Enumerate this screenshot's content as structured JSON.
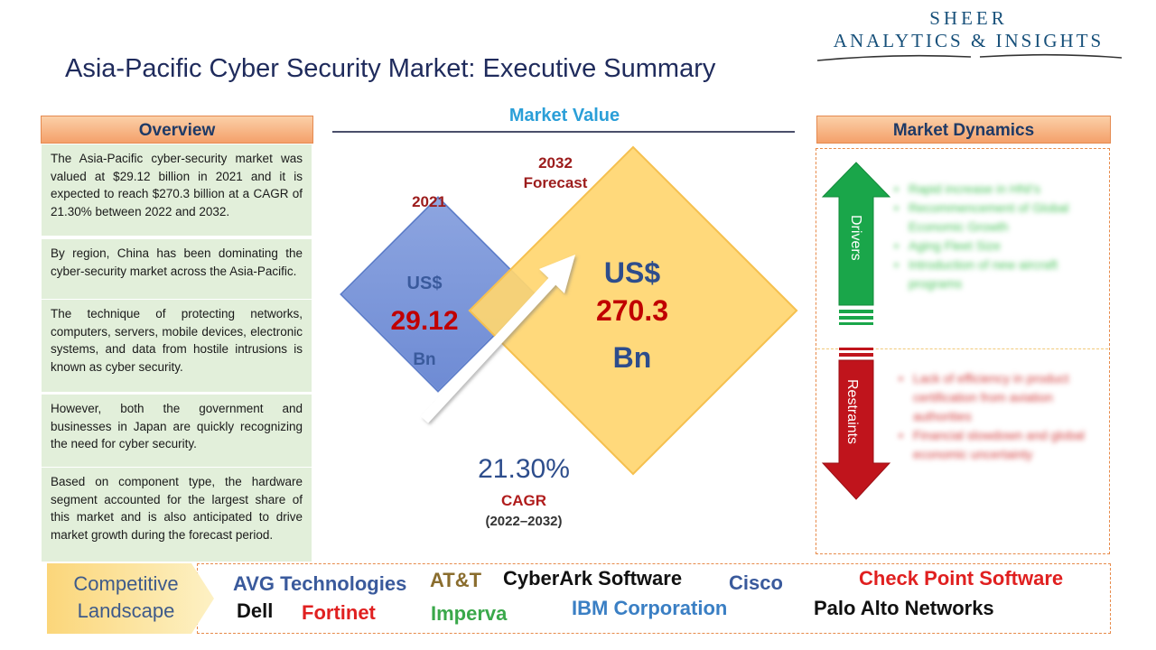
{
  "logo": {
    "line1": "SHEER",
    "line2": "ANALYTICS & INSIGHTS"
  },
  "title": "Asia-Pacific Cyber Security Market: Executive Summary",
  "overview": {
    "header": "Overview",
    "paragraphs": [
      "The Asia-Pacific cyber-security market was valued at $29.12 billion in 2021 and it is expected to reach $270.3 billion at a CAGR of 21.30% between 2022 and 2032.",
      "By region, China has been dominating the cyber-security market across the Asia-Pacific.",
      "The technique of protecting networks, computers, servers, mobile devices, electronic systems, and data from hostile intrusions is known as cyber security.",
      "However, both the government and businesses in Japan are quickly recognizing the need for cyber security.",
      "Based on component type, the hardware segment accounted for the largest share of this market and is also anticipated to drive market growth during the forecast period."
    ]
  },
  "market_value": {
    "header": "Market Value",
    "year_2021": "2021",
    "year_2032_line1": "2032",
    "year_2032_line2": "Forecast",
    "value_2021": {
      "currency": "US$",
      "number": "29.12",
      "unit": "Bn"
    },
    "value_2032": {
      "currency": "US$",
      "number": "270.3",
      "unit": "Bn"
    },
    "cagr_value": "21.30%",
    "cagr_label": "CAGR",
    "cagr_period": "(2022–2032)"
  },
  "market_dynamics": {
    "header": "Market Dynamics",
    "drivers_label": "Drivers",
    "restraints_label": "Restraints",
    "drivers": [
      "Rapid increase in HNI's",
      "Recommencement of Global Economic Growth",
      "Aging Fleet Size",
      "Introduction of new aircraft programs"
    ],
    "restraints": [
      "Lack of efficiency in product certification from aviation authorities",
      "Financial slowdown and global economic uncertainty"
    ]
  },
  "competitive_landscape": {
    "label_line1": "Competitive",
    "label_line2": "Landscape",
    "companies": [
      {
        "name": "AVG Technologies",
        "color": "#3a5a9c"
      },
      {
        "name": "AT&T",
        "color": "#8a6d2e"
      },
      {
        "name": "CyberArk Software",
        "color": "#111111"
      },
      {
        "name": "Cisco",
        "color": "#3a5a9c"
      },
      {
        "name": "Check Point Software",
        "color": "#e02020"
      },
      {
        "name": "Dell",
        "color": "#111111"
      },
      {
        "name": "Fortinet",
        "color": "#e02020"
      },
      {
        "name": "Imperva",
        "color": "#3aa84a"
      },
      {
        "name": "IBM Corporation",
        "color": "#3a7fc4"
      },
      {
        "name": "Palo Alto Networks",
        "color": "#111111"
      }
    ]
  },
  "colors": {
    "accent_orange": "#f4a06a",
    "overview_bg": "#e2efda",
    "title_blue": "#1f2b5c",
    "driver_green": "#1aa64a",
    "restraint_red": "#c0141c"
  }
}
